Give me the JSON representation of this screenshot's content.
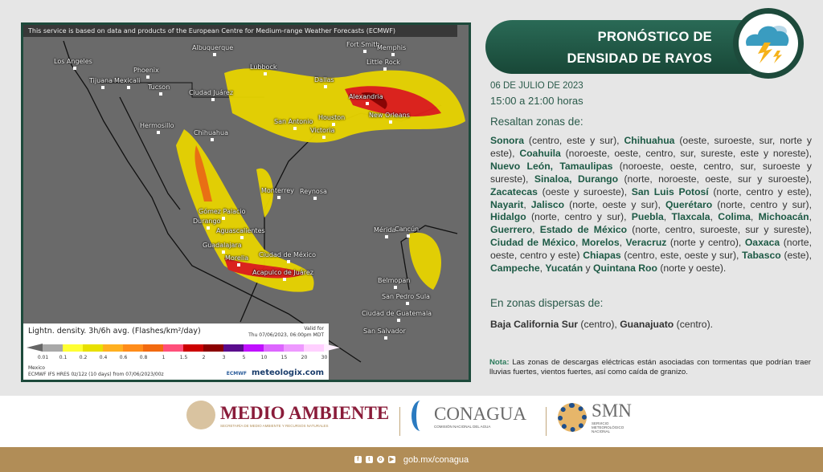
{
  "map": {
    "credit": "This service is based on data and products of the European Centre for Medium-range Weather Forecasts (ECMWF)",
    "cities": [
      "Los Angeles",
      "Tijuana",
      "Mexicali",
      "Phoenix",
      "Tucson",
      "Albuquerque",
      "Lubbock",
      "Ciudad Juárez",
      "Dallas",
      "Fort Smith",
      "Memphis",
      "Little Rock",
      "Alexandria",
      "New Orleans",
      "Houston",
      "San Antonio",
      "Victoria",
      "Hermosillo",
      "Chihuahua",
      "Monterrey",
      "Reynosa",
      "Gómez Palacio",
      "Durango",
      "Aguascalientes",
      "Guadalajara",
      "Morelia",
      "Ciudad de México",
      "Acapulco de Juárez",
      "Mérida",
      "Cancún",
      "Belmopan",
      "San Pedro Sula",
      "Ciudad de Guatemala",
      "San Salvador"
    ],
    "legend": {
      "title": "Lightn. density. 3h/6h avg. (Flashes/km²/day)",
      "valid_label": "Valid for",
      "valid_time": "Thu 07/06/2023, 06:00pm MDT",
      "ticks": [
        "0.01",
        "0.1",
        "0.2",
        "0.4",
        "0.6",
        "0.8",
        "1",
        "1.5",
        "2",
        "3",
        "5",
        "10",
        "15",
        "20",
        "30"
      ],
      "colors": [
        "#a8a8a8",
        "#ffff33",
        "#e8e000",
        "#ffb020",
        "#ff8c1a",
        "#f26a10",
        "#ff4f7a",
        "#cc0000",
        "#8b0000",
        "#5a0c8c",
        "#c010ff",
        "#dd66ff",
        "#ee99ff",
        "#ffd0ff"
      ],
      "region": "Mexico",
      "model": "ECMWF IFS HRES 0z/12z (10 days) from 07/06/2023/00z",
      "brand": "meteologix.com",
      "ecmwf": "ECMWF"
    }
  },
  "header": {
    "title_line1": "PRONÓSTICO DE",
    "title_line2": "DENSIDAD DE RAYOS",
    "icon": "storm-cloud-lightning-icon"
  },
  "date": "06 DE JULIO DE 2023",
  "hours": "15:00 a 21:00 horas",
  "highlight_heading": "Resaltan zonas de:",
  "highlight_segments": [
    {
      "b": "Sonora"
    },
    {
      "t": " (centro, este y sur), "
    },
    {
      "b": "Chihuahua"
    },
    {
      "t": " (oeste, suroeste, sur, norte y este), "
    },
    {
      "b": "Coahuila"
    },
    {
      "t": " (noroeste, oeste, centro, sur, sureste, este y noreste), "
    },
    {
      "b": "Nuevo León, Tamaulipas"
    },
    {
      "t": " (noroeste, oeste, centro, sur, suroeste y sureste), "
    },
    {
      "b": "Sinaloa, Durango"
    },
    {
      "t": " (norte, noroeste, oeste, sur y suroeste), "
    },
    {
      "b": "Zacatecas"
    },
    {
      "t": " (oeste y suroeste), "
    },
    {
      "b": "San Luis Potosí"
    },
    {
      "t": " (norte, centro y este), "
    },
    {
      "b": "Nayarit"
    },
    {
      "t": ", "
    },
    {
      "b": "Jalisco"
    },
    {
      "t": " (norte, oeste y sur), "
    },
    {
      "b": "Querétaro"
    },
    {
      "t": " (norte, centro y sur), "
    },
    {
      "b": "Hidalgo"
    },
    {
      "t": " (norte, centro y sur), "
    },
    {
      "b": "Puebla"
    },
    {
      "t": ", "
    },
    {
      "b": "Tlaxcala"
    },
    {
      "t": ", "
    },
    {
      "b": "Colima"
    },
    {
      "t": ", "
    },
    {
      "b": "Michoacán"
    },
    {
      "t": ", "
    },
    {
      "b": "Guerrero"
    },
    {
      "t": ", "
    },
    {
      "b": "Estado de México"
    },
    {
      "t": " (norte, centro, suroeste, sur y sureste), "
    },
    {
      "b": "Ciudad de México"
    },
    {
      "t": ", "
    },
    {
      "b": "Morelos"
    },
    {
      "t": ", "
    },
    {
      "b": "Veracruz"
    },
    {
      "t": " (norte y centro), "
    },
    {
      "b": "Oaxaca"
    },
    {
      "t": " (norte, oeste, centro y este) "
    },
    {
      "b": "Chiapas"
    },
    {
      "t": " (centro, este, oeste y sur), "
    },
    {
      "b": "Tabasco"
    },
    {
      "t": " (este), "
    },
    {
      "b": "Campeche"
    },
    {
      "t": ", "
    },
    {
      "b": "Yucatán"
    },
    {
      "t": " y "
    },
    {
      "b": "Quintana Roo"
    },
    {
      "t": " (norte y oeste)."
    }
  ],
  "dispersed_heading": "En zonas dispersas de:",
  "dispersed_segments": [
    {
      "b": "Baja California Sur"
    },
    {
      "t": " (centro), "
    },
    {
      "b": "Guanajuato"
    },
    {
      "t": " (centro)."
    }
  ],
  "note": {
    "label": "Nota:",
    "text": " Las zonas de descargas eléctricas están asociadas con tormentas que podrían traer lluvias fuertes, vientos fuertes, así como caída de granizo."
  },
  "footer": {
    "medio_ambiente": "MEDIO AMBIENTE",
    "medio_sub": "SECRETARÍA DE MEDIO AMBIENTE Y RECURSOS NATURALES",
    "conagua": "CONAGUA",
    "conagua_sub": "COMISIÓN NACIONAL DEL AGUA",
    "smn": "SMN",
    "smn_sub": "SERVICIO METEOROLÓGICO NACIONAL",
    "url": "gob.mx/conagua",
    "social": [
      "facebook-icon",
      "twitter-icon",
      "instagram-icon",
      "youtube-icon"
    ]
  }
}
